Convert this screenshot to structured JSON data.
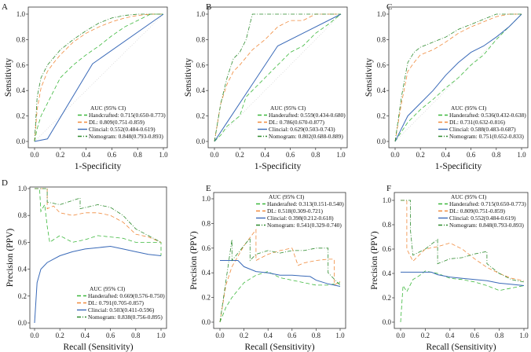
{
  "colors": {
    "Handcrafted": "#3cb83c",
    "DL": "#f08a3c",
    "Clinical": "#3a6ab8",
    "Nomogram": "#2e8b2e"
  },
  "chart_data": [
    {
      "panel": "A",
      "type": "line",
      "xlabel": "1-Specificity",
      "ylabel": "Sensitivity",
      "xlim": [
        0,
        1
      ],
      "ylim": [
        0,
        1
      ],
      "xticks": [
        "0.0",
        "0.2",
        "0.4",
        "0.6",
        "0.8",
        "1.0"
      ],
      "yticks": [
        "0.0",
        "0.2",
        "0.4",
        "0.6",
        "0.8",
        "1.0"
      ],
      "legend_title": "AUC (95% CI)",
      "legend_placement": "bottom-right",
      "diagonal": true,
      "series": [
        {
          "name": "Handcrafted: 0.715(0.650-0.773)",
          "key": "Handcrafted",
          "style": "dashed",
          "x": [
            0,
            0.02,
            0.05,
            0.1,
            0.15,
            0.2,
            0.3,
            0.4,
            0.5,
            0.6,
            0.7,
            0.8,
            0.9,
            1
          ],
          "y": [
            0,
            0.1,
            0.2,
            0.3,
            0.4,
            0.5,
            0.6,
            0.68,
            0.75,
            0.83,
            0.9,
            0.95,
            1,
            1
          ]
        },
        {
          "name": "DL: 0.809(0.751-0.859)",
          "key": "DL",
          "style": "dashed",
          "x": [
            0,
            0.02,
            0.05,
            0.1,
            0.15,
            0.2,
            0.3,
            0.4,
            0.5,
            0.6,
            0.7,
            0.8,
            0.9,
            1
          ],
          "y": [
            0,
            0.25,
            0.42,
            0.55,
            0.62,
            0.68,
            0.78,
            0.85,
            0.9,
            0.94,
            0.97,
            0.99,
            1,
            1
          ]
        },
        {
          "name": "Clincial: 0.552(0.484-0.619)",
          "key": "Clinical",
          "style": "solid",
          "x": [
            0,
            0.1,
            0.45,
            1
          ],
          "y": [
            0,
            0.02,
            0.61,
            1
          ]
        },
        {
          "name": "Nomogram: 0.848(0.793-0.893)",
          "key": "Nomogram",
          "style": "dashdot",
          "x": [
            0,
            0.02,
            0.05,
            0.1,
            0.15,
            0.2,
            0.3,
            0.4,
            0.5,
            0.6,
            0.7,
            0.8,
            0.9,
            1
          ],
          "y": [
            0,
            0.35,
            0.5,
            0.6,
            0.66,
            0.72,
            0.8,
            0.87,
            0.93,
            0.97,
            0.99,
            1,
            1,
            1
          ]
        }
      ]
    },
    {
      "panel": "B",
      "type": "line",
      "xlabel": "1-Specificity",
      "ylabel": "Sensitivity",
      "xlim": [
        0,
        1
      ],
      "ylim": [
        0,
        1
      ],
      "xticks": [
        "0.0",
        "0.2",
        "0.4",
        "0.6",
        "0.8",
        "1.0"
      ],
      "yticks": [
        "0.0",
        "0.2",
        "0.4",
        "0.6",
        "0.8",
        "1.0"
      ],
      "legend_title": "AUC (95% CI)",
      "legend_placement": "bottom-right",
      "diagonal": true,
      "series": [
        {
          "name": "Handerafted: 0.559(0.434-0.680)",
          "key": "Handcrafted",
          "style": "dashed",
          "x": [
            0,
            0.05,
            0.1,
            0.2,
            0.25,
            0.3,
            0.4,
            0.5,
            0.6,
            0.7,
            0.8,
            0.9,
            1
          ],
          "y": [
            0,
            0.05,
            0.12,
            0.2,
            0.35,
            0.4,
            0.5,
            0.6,
            0.7,
            0.75,
            0.85,
            0.92,
            1
          ]
        },
        {
          "name": "DL: 0.786(0.670-0.877)",
          "key": "DL",
          "style": "dashed",
          "x": [
            0,
            0.05,
            0.1,
            0.15,
            0.2,
            0.3,
            0.4,
            0.45,
            0.5,
            0.6,
            0.7,
            0.8,
            0.9,
            1
          ],
          "y": [
            0,
            0.3,
            0.45,
            0.55,
            0.6,
            0.72,
            0.8,
            0.85,
            0.9,
            0.95,
            0.95,
            1,
            1,
            1
          ]
        },
        {
          "name": "Clincial: 0.629(0.503-0.743)",
          "key": "Clinical",
          "style": "solid",
          "x": [
            0,
            0.1,
            0.3,
            0.5,
            0.7,
            1
          ],
          "y": [
            0,
            0.15,
            0.45,
            0.75,
            0.85,
            1
          ]
        },
        {
          "name": "Nomogram: 0.802(0.688-0.889)",
          "key": "Nomogram",
          "style": "dashdot",
          "x": [
            0,
            0.05,
            0.1,
            0.15,
            0.2,
            0.25,
            0.3,
            0.4,
            0.5,
            0.6,
            0.8,
            1
          ],
          "y": [
            0,
            0.3,
            0.5,
            0.65,
            0.7,
            0.8,
            1,
            1,
            1,
            1,
            1,
            1
          ]
        }
      ]
    },
    {
      "panel": "C",
      "type": "line",
      "xlabel": "1-Specificity",
      "ylabel": "Sensitivity",
      "xlim": [
        0,
        1
      ],
      "ylim": [
        0,
        1
      ],
      "xticks": [
        "0.0",
        "0.2",
        "0.4",
        "0.6",
        "0.8",
        "1.0"
      ],
      "yticks": [
        "0.0",
        "0.2",
        "0.4",
        "0.6",
        "0.8",
        "1.0"
      ],
      "legend_title": "AUC (95% CI)",
      "legend_placement": "bottom-right",
      "diagonal": true,
      "series": [
        {
          "name": "Handerafted: 0.536(0.432-0.638)",
          "key": "Handcrafted",
          "style": "dashed",
          "x": [
            0,
            0.1,
            0.2,
            0.3,
            0.4,
            0.5,
            0.6,
            0.7,
            0.8,
            0.9,
            1
          ],
          "y": [
            0,
            0.15,
            0.25,
            0.33,
            0.42,
            0.5,
            0.6,
            0.68,
            0.8,
            0.9,
            1
          ]
        },
        {
          "name": "DL: 0.731(0.632-0.816)",
          "key": "DL",
          "style": "dashed",
          "x": [
            0,
            0.05,
            0.1,
            0.15,
            0.2,
            0.3,
            0.4,
            0.5,
            0.6,
            0.7,
            0.8,
            0.9,
            1
          ],
          "y": [
            0,
            0.3,
            0.55,
            0.62,
            0.68,
            0.72,
            0.78,
            0.85,
            0.9,
            0.94,
            0.98,
            1,
            1
          ]
        },
        {
          "name": "Clincial: 0.588(0.483-0.687)",
          "key": "Clinical",
          "style": "solid",
          "x": [
            0,
            0.1,
            0.2,
            0.3,
            0.4,
            0.5,
            0.6,
            0.7,
            0.8,
            0.9,
            1
          ],
          "y": [
            0,
            0.2,
            0.3,
            0.4,
            0.52,
            0.62,
            0.7,
            0.75,
            0.82,
            0.9,
            1
          ]
        },
        {
          "name": "Nomogram: 0.751(0.652-0.833)",
          "key": "Nomogram",
          "style": "dashdot",
          "x": [
            0,
            0.05,
            0.1,
            0.15,
            0.2,
            0.3,
            0.4,
            0.5,
            0.6,
            0.7,
            0.8,
            0.9,
            1
          ],
          "y": [
            0,
            0.35,
            0.62,
            0.7,
            0.74,
            0.78,
            0.82,
            0.88,
            0.92,
            0.96,
            1,
            1,
            1
          ]
        }
      ]
    },
    {
      "panel": "D",
      "type": "line",
      "xlabel": "Recall (Sensitivity)",
      "ylabel": "Precision (PPV)",
      "xlim": [
        0,
        1
      ],
      "ylim": [
        0,
        1
      ],
      "xticks": [
        "0.0",
        "0.2",
        "0.4",
        "0.6",
        "0.8",
        "1.0"
      ],
      "yticks": [
        "0.0",
        "0.2",
        "0.4",
        "0.6",
        "0.8",
        "1.0"
      ],
      "legend_title": "AUC (95% CI)",
      "legend_placement": "bottom-right",
      "diagonal": false,
      "series": [
        {
          "name": "Handerafted: 0.669(0.576-0.750)",
          "key": "Handcrafted",
          "style": "dashed",
          "x": [
            0,
            0.04,
            0.05,
            0.08,
            0.1,
            0.12,
            0.15,
            0.2,
            0.3,
            0.4,
            0.5,
            0.6,
            0.7,
            0.8,
            0.9,
            1,
            1
          ],
          "y": [
            1,
            1,
            0.83,
            0.88,
            0.72,
            0.6,
            0.62,
            0.65,
            0.6,
            0.62,
            0.65,
            0.64,
            0.63,
            0.6,
            0.6,
            0.6,
            0.5
          ]
        },
        {
          "name": "DL: 0.791(0.705-0.857)",
          "key": "DL",
          "style": "dashed",
          "x": [
            0,
            0.1,
            0.1,
            0.15,
            0.2,
            0.3,
            0.4,
            0.5,
            0.6,
            0.7,
            0.8,
            0.9,
            1
          ],
          "y": [
            1,
            1,
            0.85,
            0.87,
            0.82,
            0.8,
            0.82,
            0.82,
            0.8,
            0.75,
            0.66,
            0.64,
            0.6
          ]
        },
        {
          "name": "Clincial: 0.503(0.411-0.596)",
          "key": "Clinical",
          "style": "solid",
          "x": [
            0,
            0.02,
            0.05,
            0.1,
            0.2,
            0.3,
            0.4,
            0.5,
            0.6,
            0.7,
            0.8,
            0.9,
            1
          ],
          "y": [
            0,
            0.3,
            0.4,
            0.45,
            0.5,
            0.53,
            0.55,
            0.56,
            0.57,
            0.55,
            0.53,
            0.51,
            0.5
          ]
        },
        {
          "name": "Nomogram: 0.838(0.756-0.895)",
          "key": "Nomogram",
          "style": "dashdot",
          "x": [
            0,
            0.1,
            0.1,
            0.2,
            0.36,
            0.36,
            0.5,
            0.6,
            0.7,
            0.8,
            0.9,
            1
          ],
          "y": [
            1,
            1,
            0.9,
            0.88,
            0.93,
            0.85,
            0.88,
            0.86,
            0.8,
            0.7,
            0.65,
            0.6
          ]
        }
      ]
    },
    {
      "panel": "E",
      "type": "line",
      "xlabel": "Recall (Sensitivity)",
      "ylabel": "Precision (PPV)",
      "xlim": [
        0,
        1
      ],
      "ylim": [
        0,
        1
      ],
      "xticks": [
        "0.0",
        "0.2",
        "0.4",
        "0.6",
        "0.8",
        "1.0"
      ],
      "yticks": [
        "0.0",
        "0.2",
        "0.4",
        "0.6",
        "0.8",
        "1.0"
      ],
      "legend_title": "AUC (95% CI)",
      "legend_placement": "top-right",
      "diagonal": false,
      "series": [
        {
          "name": "Handerafted: 0.313(0.151-0.540)",
          "key": "Handcrafted",
          "style": "dashed",
          "x": [
            0,
            0.05,
            0.1,
            0.15,
            0.2,
            0.3,
            0.4,
            0.5,
            0.6,
            0.7,
            0.8,
            0.9,
            1
          ],
          "y": [
            0,
            0.12,
            0.2,
            0.26,
            0.32,
            0.38,
            0.41,
            0.36,
            0.34,
            0.32,
            0.3,
            0.3,
            0.32
          ]
        },
        {
          "name": "DL: 0.518(0.309-0.721)",
          "key": "DL",
          "style": "dashed",
          "x": [
            0,
            0.05,
            0.1,
            0.2,
            0.3,
            0.3,
            0.4,
            0.5,
            0.6,
            0.65,
            0.7,
            0.8,
            0.9,
            0.95,
            0.95,
            1
          ],
          "y": [
            0,
            0.3,
            0.45,
            0.62,
            0.75,
            0.5,
            0.55,
            0.58,
            0.6,
            0.46,
            0.48,
            0.5,
            0.51,
            0.51,
            0.3,
            0.33
          ]
        },
        {
          "name": "Clincial: 0.398(0.212-0.618)",
          "key": "Clinical",
          "style": "solid",
          "x": [
            0,
            0.15,
            0.2,
            0.3,
            0.4,
            0.5,
            0.6,
            0.75,
            0.8,
            0.9,
            1
          ],
          "y": [
            0.5,
            0.5,
            0.45,
            0.41,
            0.4,
            0.38,
            0.38,
            0.37,
            0.34,
            0.31,
            0.29
          ]
        },
        {
          "name": "Nomogram: 0.541(0.329-0.740)",
          "key": "Nomogram",
          "style": "dashdot",
          "x": [
            0,
            0.1,
            0.1,
            0.25,
            0.25,
            0.3,
            0.4,
            0.5,
            0.6,
            0.7,
            0.8,
            0.9,
            0.9,
            1
          ],
          "y": [
            0,
            0.67,
            0.5,
            0.68,
            0.5,
            0.55,
            0.58,
            0.56,
            0.58,
            0.58,
            0.6,
            0.6,
            0.4,
            0.3
          ]
        }
      ]
    },
    {
      "panel": "F",
      "type": "line",
      "xlabel": "Recall (Sensitivity)",
      "ylabel": "Precision (PPV)",
      "xlim": [
        0,
        1
      ],
      "ylim": [
        0,
        1
      ],
      "xticks": [
        "0.0",
        "0.2",
        "0.4",
        "0.6",
        "0.8",
        "1.0"
      ],
      "yticks": [
        "0.0",
        "0.2",
        "0.4",
        "0.6",
        "0.8",
        "1.0"
      ],
      "legend_title": "AUC (95% CI)",
      "legend_placement": "top-right",
      "diagonal": false,
      "series": [
        {
          "name": "Handerafted: 0.715(0.650-0.773)",
          "key": "Handcrafted",
          "style": "dashed",
          "x": [
            0,
            0.02,
            0.05,
            0.1,
            0.15,
            0.2,
            0.3,
            0.4,
            0.5,
            0.6,
            0.7,
            0.8,
            0.9,
            1
          ],
          "y": [
            0,
            0.3,
            0.25,
            0.35,
            0.38,
            0.42,
            0.4,
            0.36,
            0.35,
            0.33,
            0.3,
            0.26,
            0.28,
            0.3
          ]
        },
        {
          "name": "DL: 0.809(0.751-0.859)",
          "key": "DL",
          "style": "dashed",
          "x": [
            0,
            0.05,
            0.05,
            0.1,
            0.2,
            0.3,
            0.4,
            0.5,
            0.6,
            0.7,
            0.8,
            0.9,
            1
          ],
          "y": [
            1,
            1,
            0.6,
            0.5,
            0.6,
            0.62,
            0.65,
            0.6,
            0.52,
            0.45,
            0.4,
            0.36,
            0.34
          ]
        },
        {
          "name": "Clincial: 0.552(0.484-0.619)",
          "key": "Clinical",
          "style": "solid",
          "x": [
            0,
            0.25,
            0.3,
            0.4,
            0.5,
            0.6,
            0.7,
            0.8,
            0.9,
            1
          ],
          "y": [
            0.41,
            0.41,
            0.39,
            0.37,
            0.36,
            0.35,
            0.34,
            0.32,
            0.31,
            0.3
          ]
        },
        {
          "name": "Nomogram: 0.848(0.793-0.893)",
          "key": "Nomogram",
          "style": "dashdot",
          "x": [
            0,
            0.08,
            0.08,
            0.1,
            0.2,
            0.3,
            0.3,
            0.4,
            0.5,
            0.6,
            0.7,
            0.7,
            0.8,
            0.9,
            1
          ],
          "y": [
            1,
            1,
            0.75,
            0.55,
            0.6,
            0.68,
            0.48,
            0.52,
            0.53,
            0.56,
            0.58,
            0.48,
            0.4,
            0.35,
            0.33
          ]
        }
      ]
    }
  ]
}
